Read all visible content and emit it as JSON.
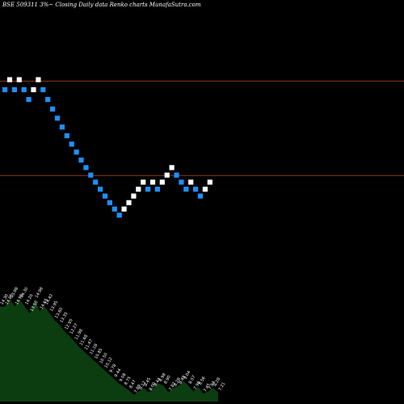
{
  "chart_data": {
    "type": "renko",
    "title": "BSE 509311 3%~  Closing Daily data  Renko  charts MunafaSutra.com",
    "background": "#000000",
    "colors": {
      "up": "#ffffff",
      "down": "#1e90ff",
      "line": "#8b3a1a",
      "area": "#0b3d10",
      "label": "#ffffff"
    },
    "grid": false,
    "legend": "none",
    "ylim": [
      6.5,
      17.5
    ],
    "horizontal_lines": [
      14.65,
      10.5
    ],
    "bricks": [
      {
        "dir": "down",
        "value": 14.27
      },
      {
        "dir": "up",
        "value": 14.71
      },
      {
        "dir": "down",
        "value": 14.27
      },
      {
        "dir": "up",
        "value": 14.71
      },
      {
        "dir": "down",
        "value": 14.27
      },
      {
        "dir": "down",
        "value": 13.84
      },
      {
        "dir": "up",
        "value": 14.27
      },
      {
        "dir": "up",
        "value": 14.71
      },
      {
        "dir": "down",
        "value": 14.27
      },
      {
        "dir": "down",
        "value": 13.84
      },
      {
        "dir": "down",
        "value": 13.42
      },
      {
        "dir": "down",
        "value": 13.02
      },
      {
        "dir": "down",
        "value": 12.63
      },
      {
        "dir": "down",
        "value": 12.25
      },
      {
        "dir": "down",
        "value": 11.88
      },
      {
        "dir": "down",
        "value": 11.53
      },
      {
        "dir": "down",
        "value": 11.18
      },
      {
        "dir": "down",
        "value": 10.85
      },
      {
        "dir": "down",
        "value": 10.52
      },
      {
        "dir": "down",
        "value": 10.21
      },
      {
        "dir": "down",
        "value": 9.9
      },
      {
        "dir": "down",
        "value": 9.6
      },
      {
        "dir": "down",
        "value": 9.31
      },
      {
        "dir": "down",
        "value": 9.03
      },
      {
        "dir": "down",
        "value": 8.76
      },
      {
        "dir": "up",
        "value": 9.03
      },
      {
        "dir": "up",
        "value": 9.31
      },
      {
        "dir": "up",
        "value": 9.6
      },
      {
        "dir": "up",
        "value": 9.9
      },
      {
        "dir": "up",
        "value": 10.21
      },
      {
        "dir": "down",
        "value": 9.9
      },
      {
        "dir": "up",
        "value": 10.21
      },
      {
        "dir": "down",
        "value": 9.9
      },
      {
        "dir": "up",
        "value": 10.21
      },
      {
        "dir": "up",
        "value": 10.52
      },
      {
        "dir": "up",
        "value": 10.85
      },
      {
        "dir": "down",
        "value": 10.52
      },
      {
        "dir": "down",
        "value": 10.21
      },
      {
        "dir": "down",
        "value": 9.9
      },
      {
        "dir": "up",
        "value": 10.21
      },
      {
        "dir": "down",
        "value": 9.9
      },
      {
        "dir": "down",
        "value": 9.6
      },
      {
        "dir": "up",
        "value": 9.9
      },
      {
        "dir": "up",
        "value": 10.21
      }
    ],
    "volume_labels": [
      "14.30",
      "14.85",
      "13.98",
      "14.98",
      "14.30",
      "14.20",
      "13.50",
      "14.98",
      "14.65",
      "14.42",
      "13.95",
      "13.60",
      "13.35",
      "12.95",
      "12.27",
      "11.98",
      "11.68",
      "11.47",
      "11.18",
      "10.85",
      "10.50",
      "10.12",
      "9.78",
      "9.44",
      "9.08",
      "8.75",
      "8.47",
      "7.89",
      "8.12",
      "8.45",
      "8.00",
      "8.44",
      "8.98",
      "8.90",
      "7.82",
      "8.28",
      "8.49",
      "9.04",
      "8.57",
      "7.96",
      "8.56",
      "7.45",
      "7.94",
      "8.28",
      "7.21"
    ],
    "volume": [
      84,
      84,
      90,
      84,
      90,
      84,
      78,
      90,
      80,
      84,
      78,
      72,
      68,
      62,
      58,
      53,
      48,
      44,
      40,
      36,
      32,
      28,
      24,
      20,
      16,
      13,
      10,
      6,
      9,
      12,
      8,
      12,
      16,
      14,
      8,
      12,
      14,
      18,
      14,
      9,
      13,
      7,
      9,
      12,
      8
    ]
  }
}
